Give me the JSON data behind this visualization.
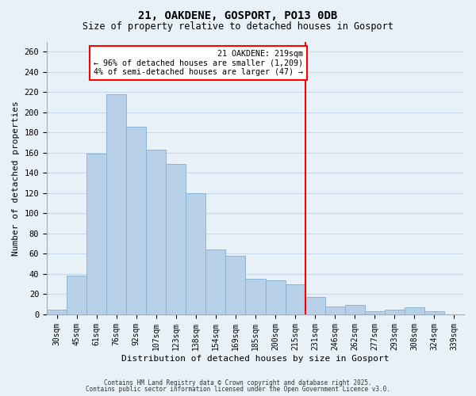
{
  "title": "21, OAKDENE, GOSPORT, PO13 0DB",
  "subtitle": "Size of property relative to detached houses in Gosport",
  "xlabel": "Distribution of detached houses by size in Gosport",
  "ylabel": "Number of detached properties",
  "bar_labels": [
    "30sqm",
    "45sqm",
    "61sqm",
    "76sqm",
    "92sqm",
    "107sqm",
    "123sqm",
    "138sqm",
    "154sqm",
    "169sqm",
    "185sqm",
    "200sqm",
    "215sqm",
    "231sqm",
    "246sqm",
    "262sqm",
    "277sqm",
    "293sqm",
    "308sqm",
    "324sqm",
    "339sqm"
  ],
  "bar_values": [
    5,
    38,
    159,
    218,
    186,
    163,
    149,
    120,
    64,
    58,
    35,
    34,
    30,
    17,
    8,
    9,
    3,
    5,
    7,
    3,
    0
  ],
  "bar_color": "#b8d0e8",
  "bar_edge_color": "#8ab4d4",
  "vline_x": 12.5,
  "vline_color": "red",
  "annotation_line1": "21 OAKDENE: 219sqm",
  "annotation_line2": "← 96% of detached houses are smaller (1,209)",
  "annotation_line3": "4% of semi-detached houses are larger (47) →",
  "annotation_box_color": "red",
  "ylim": [
    0,
    270
  ],
  "yticks": [
    0,
    20,
    40,
    60,
    80,
    100,
    120,
    140,
    160,
    180,
    200,
    220,
    240,
    260
  ],
  "grid_color": "#c8d8e8",
  "background_color": "#e8f0f8",
  "footnote1": "Contains HM Land Registry data © Crown copyright and database right 2025.",
  "footnote2": "Contains public sector information licensed under the Open Government Licence v3.0."
}
